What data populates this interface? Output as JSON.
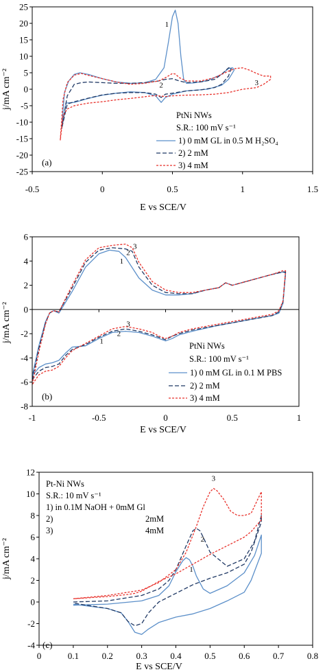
{
  "colors": {
    "s1": "#5b8fc9",
    "s2": "#1f3864",
    "s3": "#e8302a",
    "axis": "#000000",
    "frame": "#000000"
  },
  "chart_data": [
    {
      "panel": "(a)",
      "type": "line",
      "xlabel": "E vs SCE/V",
      "ylabel": "j/mA cm⁻²",
      "xlim": [
        -0.5,
        1.5
      ],
      "ylim": [
        -25,
        25
      ],
      "xticks": [
        -0.5,
        0,
        0.5,
        1,
        1.5
      ],
      "xtick_labels": [
        "-0.5",
        "0",
        "0.5",
        "1",
        "1.5"
      ],
      "yticks": [
        -25,
        -20,
        -15,
        -10,
        -5,
        0,
        5,
        10,
        15,
        20,
        25
      ],
      "ytick_labels": [
        "-25",
        "-20",
        "-15",
        "-10",
        "-5",
        "0",
        "5",
        "10",
        "15",
        "20",
        "25"
      ],
      "legend": {
        "title1": "PtNi NWs",
        "title2": "S.R.: 100 mV s⁻¹",
        "entries": [
          "1) 0 mM GL in 0.5 M H₂SO₄",
          "2) 2 mM",
          "3) 4 mM"
        ]
      },
      "annotations": [
        {
          "text": "1",
          "x": 0.46,
          "y": 19
        },
        {
          "text": "2",
          "x": 0.42,
          "y": 0.5
        },
        {
          "text": "3",
          "x": 1.1,
          "y": 1.2
        }
      ],
      "series": [
        {
          "name": "1) 0 mM GL in 0.5 M H₂SO₄",
          "style": "solid",
          "color_key": "s1",
          "x": [
            -0.29,
            -0.27,
            -0.24,
            -0.2,
            -0.16,
            -0.1,
            0,
            0.1,
            0.2,
            0.3,
            0.38,
            0.44,
            0.47,
            0.5,
            0.52,
            0.54,
            0.56,
            0.58,
            0.6,
            0.65,
            0.75,
            0.85,
            0.9,
            0.93,
            0.94,
            0.9,
            0.85,
            0.75,
            0.6,
            0.5,
            0.45,
            0.42,
            0.38,
            0.3,
            0.2,
            0.1,
            0,
            -0.1,
            -0.2,
            -0.26,
            -0.29
          ],
          "y": [
            -12,
            -1,
            2.5,
            4.5,
            5,
            4.5,
            3.2,
            2.2,
            1.8,
            1.9,
            3,
            6.5,
            14,
            22,
            24,
            20,
            10,
            3,
            1.8,
            1.9,
            2.6,
            4.5,
            6.3,
            6.5,
            5.8,
            3,
            1.2,
            0,
            -0.5,
            -1.5,
            -2.5,
            -4,
            -2,
            -1,
            -0.8,
            -1.2,
            -1.8,
            -2.8,
            -4,
            -4.2,
            -12
          ]
        },
        {
          "name": "2) 2 mM",
          "style": "dashed",
          "color_key": "s2",
          "x": [
            -0.29,
            -0.25,
            -0.2,
            -0.15,
            -0.1,
            0,
            0.1,
            0.2,
            0.3,
            0.4,
            0.45,
            0.5,
            0.55,
            0.6,
            0.7,
            0.8,
            0.85,
            0.9,
            0.92,
            0.9,
            0.85,
            0.8,
            0.7,
            0.6,
            0.5,
            0.45,
            0.42,
            0.38,
            0.3,
            0.2,
            0.1,
            0,
            -0.1,
            -0.2,
            -0.25,
            -0.29
          ],
          "y": [
            -12,
            -2,
            1.5,
            2,
            2.2,
            2,
            1.8,
            1.8,
            2,
            2.5,
            3,
            3.2,
            2.5,
            2,
            2.2,
            3,
            4.5,
            6.5,
            6.5,
            4,
            1.5,
            0.5,
            -0.2,
            -0.5,
            -1.2,
            -1.5,
            -2.5,
            -1.5,
            -1,
            -1,
            -1.2,
            -1.7,
            -2.7,
            -3.8,
            -4.5,
            -12
          ]
        },
        {
          "name": "3) 4 mM",
          "style": "dotted",
          "color_key": "s3",
          "x": [
            -0.3,
            -0.28,
            -0.25,
            -0.2,
            -0.15,
            -0.1,
            0,
            0.1,
            0.2,
            0.3,
            0.4,
            0.45,
            0.5,
            0.52,
            0.55,
            0.6,
            0.7,
            0.8,
            0.9,
            0.95,
            1.0,
            1.05,
            1.1,
            1.15,
            1.2,
            1.2,
            1.15,
            1.1,
            1.0,
            0.95,
            0.9,
            0.8,
            0.7,
            0.6,
            0.5,
            0.45,
            0.4,
            0.35,
            0.3,
            0.2,
            0.1,
            0,
            -0.1,
            -0.2,
            -0.25,
            -0.28,
            -0.3
          ],
          "y": [
            -15.5,
            -3,
            2,
            4.3,
            4.8,
            4.2,
            3.2,
            2.2,
            1.5,
            1.8,
            2.5,
            3.5,
            4.8,
            4.6,
            3.5,
            2.5,
            2.5,
            3.5,
            5.5,
            6.3,
            6.5,
            5.8,
            4.8,
            4,
            4,
            3,
            1.5,
            0.5,
            0,
            -0.5,
            -1,
            -1.5,
            -1.7,
            -1.8,
            -2,
            -2.2,
            -2,
            -2,
            -2.3,
            -2.8,
            -3.2,
            -3.8,
            -4.2,
            -5,
            -6,
            -8,
            -15.5
          ]
        }
      ]
    },
    {
      "panel": "(b)",
      "type": "line",
      "xlabel": "E vs SCE/V",
      "ylabel": "j/mA cm⁻²",
      "xlim": [
        -1,
        1
      ],
      "ylim": [
        -8,
        6
      ],
      "xticks": [
        -1,
        -0.5,
        0,
        0.5,
        1
      ],
      "xtick_labels": [
        "-1",
        "-0.5",
        "0",
        "0.5",
        "1"
      ],
      "yticks": [
        -8,
        -6,
        -4,
        -2,
        0,
        2,
        4,
        6
      ],
      "ytick_labels": [
        "-8",
        "-6",
        "-4",
        "-2",
        "0",
        "2",
        "4",
        "6"
      ],
      "legend": {
        "title1": "PtNi NWs",
        "title2": "S.R.: 100 mV s⁻¹",
        "entries": [
          "1) 0 mM GL in 0.1 M PBS",
          "2) 2 mM",
          "3) 4 mM"
        ]
      },
      "annotations": [
        {
          "text": "1",
          "x": -0.33,
          "y": 3.8
        },
        {
          "text": "2",
          "x": -0.28,
          "y": 4.5
        },
        {
          "text": "3",
          "x": -0.23,
          "y": 5
        },
        {
          "text": "1",
          "x": -0.48,
          "y": -2.8
        },
        {
          "text": "2",
          "x": -0.35,
          "y": -2.2
        },
        {
          "text": "3",
          "x": -0.28,
          "y": -1.4
        }
      ],
      "series": [
        {
          "name": "1) 0 mM GL in 0.1 M PBS",
          "style": "solid",
          "color_key": "s1",
          "x": [
            -1,
            -0.95,
            -0.9,
            -0.87,
            -0.84,
            -0.8,
            -0.7,
            -0.6,
            -0.5,
            -0.42,
            -0.35,
            -0.3,
            -0.2,
            -0.1,
            0,
            0.1,
            0.2,
            0.3,
            0.4,
            0.45,
            0.5,
            0.6,
            0.7,
            0.8,
            0.88,
            0.9,
            0.88,
            0.85,
            0.8,
            0.7,
            0.6,
            0.5,
            0.4,
            0.2,
            0.1,
            0.05,
            0,
            -0.05,
            -0.1,
            -0.2,
            -0.3,
            -0.4,
            -0.5,
            -0.6,
            -0.7,
            -0.75,
            -0.8,
            -0.85,
            -0.9,
            -0.95,
            -1
          ],
          "y": [
            -5.5,
            -3,
            -1,
            -0.3,
            -0.1,
            -0.3,
            1.5,
            3.5,
            4.6,
            4.9,
            4.8,
            4.3,
            2.6,
            1.6,
            1.2,
            1.2,
            1.3,
            1.6,
            1.8,
            2.2,
            2,
            2.3,
            2.6,
            2.9,
            3.1,
            3,
            0.5,
            -0.3,
            -0.5,
            -0.7,
            -0.9,
            -1.1,
            -1.3,
            -1.8,
            -2.1,
            -2.4,
            -2.6,
            -2.4,
            -2.2,
            -1.9,
            -1.8,
            -1.9,
            -2.4,
            -3,
            -3.1,
            -3.6,
            -4.2,
            -4.4,
            -4.5,
            -4.8,
            -5.5
          ]
        },
        {
          "name": "2) 2 mM",
          "style": "dashed",
          "color_key": "s2",
          "x": [
            -1,
            -0.95,
            -0.9,
            -0.87,
            -0.84,
            -0.8,
            -0.7,
            -0.6,
            -0.5,
            -0.4,
            -0.3,
            -0.25,
            -0.2,
            -0.1,
            0,
            0.1,
            0.2,
            0.3,
            0.4,
            0.45,
            0.5,
            0.6,
            0.7,
            0.8,
            0.88,
            0.9,
            0.88,
            0.85,
            0.8,
            0.7,
            0.6,
            0.5,
            0.4,
            0.2,
            0.1,
            0.05,
            0,
            -0.05,
            -0.1,
            -0.2,
            -0.3,
            -0.4,
            -0.5,
            -0.6,
            -0.7,
            -0.75,
            -0.8,
            -0.85,
            -0.9,
            -0.95,
            -1
          ],
          "y": [
            -5.8,
            -3.2,
            -1.1,
            -0.3,
            -0.1,
            -0.2,
            1.8,
            3.9,
            4.9,
            5.1,
            5,
            4.8,
            3.5,
            2,
            1.4,
            1.3,
            1.3,
            1.6,
            1.8,
            2.2,
            2,
            2.3,
            2.6,
            2.9,
            3.1,
            3.1,
            0.6,
            -0.2,
            -0.5,
            -0.7,
            -0.9,
            -1.1,
            -1.3,
            -1.7,
            -2,
            -2.2,
            -2.5,
            -2.3,
            -2.1,
            -1.8,
            -1.6,
            -1.8,
            -2.3,
            -2.9,
            -3.3,
            -3.8,
            -4.5,
            -4.7,
            -4.8,
            -5.1,
            -5.8
          ]
        },
        {
          "name": "3) 4 mM",
          "style": "dotted",
          "color_key": "s3",
          "x": [
            -1,
            -0.95,
            -0.9,
            -0.87,
            -0.84,
            -0.8,
            -0.7,
            -0.6,
            -0.5,
            -0.4,
            -0.3,
            -0.25,
            -0.2,
            -0.1,
            0,
            0.1,
            0.2,
            0.3,
            0.4,
            0.45,
            0.5,
            0.6,
            0.7,
            0.8,
            0.88,
            0.9,
            0.88,
            0.85,
            0.8,
            0.7,
            0.6,
            0.5,
            0.4,
            0.2,
            0.1,
            0.05,
            0,
            -0.05,
            -0.1,
            -0.2,
            -0.3,
            -0.4,
            -0.5,
            -0.6,
            -0.7,
            -0.75,
            -0.8,
            -0.85,
            -0.9,
            -0.95,
            -1
          ],
          "y": [
            -6.2,
            -3.5,
            -1.2,
            -0.3,
            -0.1,
            -0.2,
            2,
            4.1,
            5.1,
            5.3,
            5.4,
            5.1,
            3.9,
            2.3,
            1.6,
            1.4,
            1.4,
            1.6,
            1.8,
            2.2,
            2,
            2.3,
            2.6,
            2.9,
            3.2,
            3.2,
            0.7,
            -0.1,
            -0.4,
            -0.6,
            -0.8,
            -1,
            -1.2,
            -1.6,
            -1.9,
            -2.2,
            -2.4,
            -2.2,
            -1.9,
            -1.6,
            -1.4,
            -1.6,
            -2.2,
            -2.8,
            -3.4,
            -4,
            -4.7,
            -5,
            -5.1,
            -5.4,
            -6.2
          ]
        }
      ]
    },
    {
      "panel": "(c)",
      "type": "line",
      "xlabel": "E vs SCE/V",
      "ylabel": "j/mA cm⁻²",
      "xlim": [
        0,
        0.8
      ],
      "ylim": [
        -4,
        12
      ],
      "xticks": [
        0,
        0.1,
        0.2,
        0.3,
        0.4,
        0.5,
        0.6,
        0.7,
        0.8
      ],
      "xtick_labels": [
        "0",
        "0.1",
        "0.2",
        "0.3",
        "0.4",
        "0.5",
        "0.6",
        "0.7",
        "0.8"
      ],
      "yticks": [
        -4,
        -2,
        0,
        2,
        4,
        6,
        8,
        10,
        12
      ],
      "ytick_labels": [
        "-4",
        "-2",
        "0",
        "2",
        "4",
        "6",
        "8",
        "10",
        "12"
      ],
      "legend": {
        "title1": "Pt-Ni NWs",
        "title2": "S.R.: 10 mV s⁻¹",
        "entries": [
          "1)  in 0.1M NaOH + 0mM Gl",
          "2)",
          "3)"
        ],
        "entry_values": [
          "",
          "2mM",
          "4mM"
        ]
      },
      "annotations": [
        {
          "text": "1",
          "x": 0.445,
          "y": 2.8
        },
        {
          "text": "2",
          "x": 0.478,
          "y": 5.6
        },
        {
          "text": "3",
          "x": 0.51,
          "y": 11.2
        }
      ],
      "series": [
        {
          "name": "1)  in 0.1M NaOH + 0mM Gl",
          "style": "solid",
          "color_key": "s1",
          "x": [
            0.1,
            0.2,
            0.3,
            0.35,
            0.38,
            0.4,
            0.42,
            0.43,
            0.44,
            0.45,
            0.46,
            0.48,
            0.5,
            0.55,
            0.6,
            0.63,
            0.65,
            0.65,
            0.62,
            0.6,
            0.55,
            0.5,
            0.45,
            0.4,
            0.35,
            0.32,
            0.3,
            0.28,
            0.26,
            0.24,
            0.2,
            0.1
          ],
          "y": [
            -0.3,
            -0.2,
            0.1,
            0.6,
            1.5,
            2.8,
            3.8,
            4.1,
            3.9,
            3.3,
            2.4,
            1.2,
            0.8,
            1.5,
            2.7,
            4.3,
            6.2,
            4.5,
            2,
            0.9,
            0.1,
            -0.6,
            -1.1,
            -1.4,
            -1.9,
            -2.5,
            -3,
            -2.8,
            -1.8,
            -1,
            -0.6,
            -0.2
          ]
        },
        {
          "name": "2)",
          "style": "dashed",
          "color_key": "s2",
          "x": [
            0.1,
            0.2,
            0.3,
            0.35,
            0.38,
            0.4,
            0.43,
            0.45,
            0.46,
            0.47,
            0.48,
            0.5,
            0.55,
            0.6,
            0.63,
            0.65,
            0.65,
            0.62,
            0.6,
            0.55,
            0.5,
            0.45,
            0.4,
            0.35,
            0.32,
            0.3,
            0.28,
            0.26,
            0.24,
            0.2,
            0.1
          ],
          "y": [
            0,
            0.1,
            0.6,
            1.2,
            2,
            3,
            5.2,
            6.6,
            6.8,
            6.6,
            6,
            4.6,
            3.3,
            4,
            5.6,
            8,
            7.4,
            4.6,
            3.5,
            2.7,
            2.2,
            1.6,
            0.8,
            0,
            -1,
            -2,
            -2.2,
            -1.8,
            -1,
            -0.6,
            -0.1
          ]
        },
        {
          "name": "3)",
          "style": "dotted",
          "color_key": "s3",
          "x": [
            0.1,
            0.2,
            0.3,
            0.35,
            0.4,
            0.43,
            0.46,
            0.48,
            0.5,
            0.51,
            0.52,
            0.54,
            0.56,
            0.58,
            0.6,
            0.62,
            0.65,
            0.65,
            0.62,
            0.6,
            0.55,
            0.5,
            0.45,
            0.4,
            0.35,
            0.3,
            0.28,
            0.26,
            0.2,
            0.1
          ],
          "y": [
            0.3,
            0.6,
            1.1,
            1.8,
            3,
            4.6,
            7,
            8.8,
            10.2,
            10.5,
            10.3,
            9.5,
            8.4,
            8,
            8,
            8.2,
            10.2,
            7.6,
            6.5,
            6,
            5.2,
            4.4,
            3.5,
            2.6,
            1.9,
            1,
            0.8,
            0.7,
            0.5,
            0.3
          ]
        }
      ]
    }
  ]
}
